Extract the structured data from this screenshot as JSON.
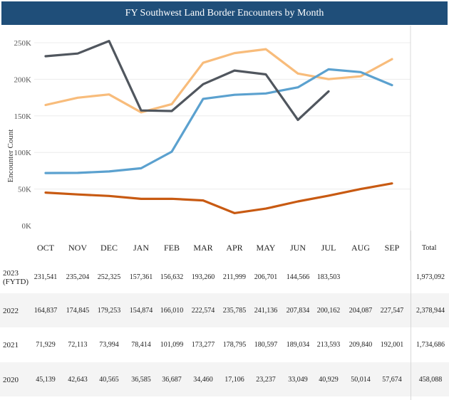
{
  "title": "FY Southwest Land Border Encounters by Month",
  "chart_data": {
    "type": "line",
    "title": "FY Southwest Land Border Encounters by Month",
    "ylabel": "Encounter Count",
    "ylim": [
      0,
      260000
    ],
    "yticks": [
      {
        "value": 0,
        "label": "0K"
      },
      {
        "value": 50000,
        "label": "50K"
      },
      {
        "value": 100000,
        "label": "100K"
      },
      {
        "value": 150000,
        "label": "150K"
      },
      {
        "value": 200000,
        "label": "200K"
      },
      {
        "value": 250000,
        "label": "250K"
      }
    ],
    "grid": "horizontal",
    "categories": [
      "OCT",
      "NOV",
      "DEC",
      "JAN",
      "FEB",
      "MAR",
      "APR",
      "MAY",
      "JUN",
      "JUL",
      "AUG",
      "SEP"
    ],
    "series": [
      {
        "name": "2023 (FYTD)",
        "color": "#50565e",
        "values": [
          231541,
          235204,
          252325,
          157361,
          156632,
          193260,
          211999,
          206701,
          144566,
          183503,
          null,
          null
        ]
      },
      {
        "name": "2022",
        "color": "#f8bc7b",
        "values": [
          164837,
          174845,
          179253,
          154874,
          166010,
          222574,
          235785,
          241136,
          207834,
          200162,
          204087,
          227547
        ]
      },
      {
        "name": "2021",
        "color": "#5ba1cf",
        "values": [
          71929,
          72113,
          73994,
          78414,
          101099,
          173277,
          178795,
          180597,
          189034,
          213593,
          209840,
          192001
        ]
      },
      {
        "name": "2020",
        "color": "#c85a12",
        "values": [
          45139,
          42643,
          40565,
          36585,
          36687,
          34460,
          17106,
          23237,
          33049,
          40929,
          50014,
          57674
        ]
      }
    ]
  },
  "table": {
    "total_header": "Total",
    "rows": [
      {
        "label_lines": [
          "2023",
          "(FYTD)"
        ],
        "cells": [
          "231,541",
          "235,204",
          "252,325",
          "157,361",
          "156,632",
          "193,260",
          "211,999",
          "206,701",
          "144,566",
          "183,503",
          "",
          ""
        ],
        "total": "1,973,092"
      },
      {
        "label_lines": [
          "2022"
        ],
        "cells": [
          "164,837",
          "174,845",
          "179,253",
          "154,874",
          "166,010",
          "222,574",
          "235,785",
          "241,136",
          "207,834",
          "200,162",
          "204,087",
          "227,547"
        ],
        "total": "2,378,944"
      },
      {
        "label_lines": [
          "2021"
        ],
        "cells": [
          "71,929",
          "72,113",
          "73,994",
          "78,414",
          "101,099",
          "173,277",
          "178,795",
          "180,597",
          "189,034",
          "213,593",
          "209,840",
          "192,001"
        ],
        "total": "1,734,686"
      },
      {
        "label_lines": [
          "2020"
        ],
        "cells": [
          "45,139",
          "42,643",
          "40,565",
          "36,585",
          "36,687",
          "34,460",
          "17,106",
          "23,237",
          "33,049",
          "40,929",
          "50,014",
          "57,674"
        ],
        "total": "458,088"
      }
    ]
  }
}
